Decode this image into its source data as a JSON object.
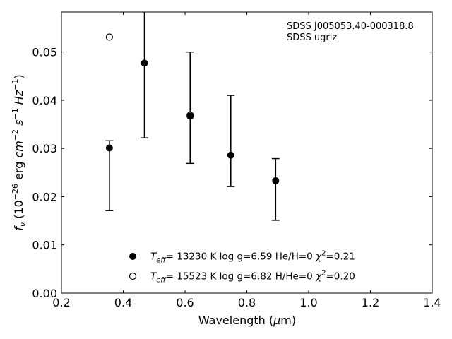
{
  "chart_data": {
    "type": "scatter",
    "xlabel": "Wavelength (μm)",
    "ylabel": "f_ν (10^-26 erg cm^-2 s^-1 Hz^-1)",
    "xlim": [
      0.2,
      1.4
    ],
    "ylim": [
      0.0,
      0.0583
    ],
    "xticks": [
      "0.2",
      "0.4",
      "0.6",
      "0.8",
      "1.0",
      "1.2",
      "1.4"
    ],
    "yticks": [
      "0.00",
      "0.01",
      "0.02",
      "0.03",
      "0.04",
      "0.05"
    ],
    "annotation": [
      "SDSS J005053.40-000318.8",
      "SDSS ugriz"
    ],
    "legend_position": "lower-center",
    "series": [
      {
        "name": "T_eff= 13230 K  log g=6.59  He/H=0  χ²=0.21",
        "marker": "filled-circle",
        "x": [
          0.3551,
          0.4686,
          0.6166,
          0.748,
          0.8932
        ],
        "y": [
          0.0301,
          0.0477,
          0.0367,
          0.0286,
          0.0233
        ]
      },
      {
        "name": "T_eff= 15523 K  log g=6.82  H/He=0  χ²=0.20",
        "marker": "open-circle",
        "x": [
          0.3551,
          0.6166
        ],
        "y": [
          0.0531,
          0.0369
        ]
      }
    ],
    "observed": {
      "x": [
        0.3551,
        0.4686,
        0.6166,
        0.748,
        0.8932
      ],
      "y": [
        0.0301,
        0.0477,
        0.0367,
        0.0286,
        0.0233
      ],
      "error_low": [
        0.0171,
        0.0322,
        0.0269,
        0.0221,
        0.0151
      ],
      "error_high": [
        0.0316,
        0.0583,
        0.05,
        0.041,
        0.0279
      ]
    }
  }
}
